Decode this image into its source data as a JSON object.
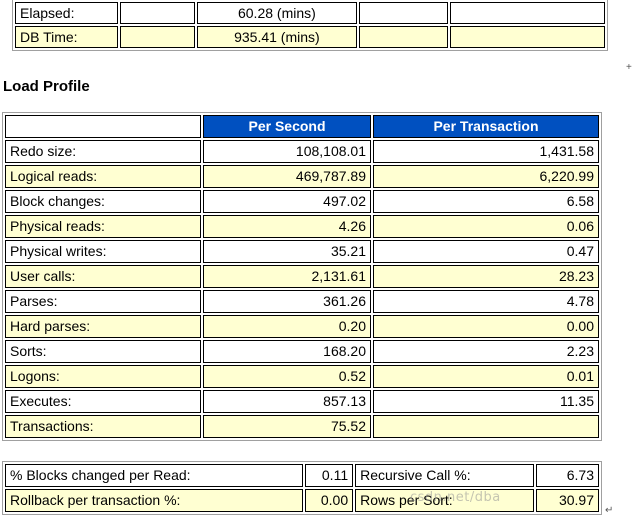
{
  "top_rows": [
    {
      "label": "Elapsed:",
      "value": "60.28 (mins)"
    },
    {
      "label": "DB Time:",
      "value": "935.41 (mins)"
    }
  ],
  "load_profile": {
    "title": "Load Profile",
    "headers": [
      "Per Second",
      "Per Transaction"
    ],
    "rows": [
      {
        "label": "Redo size:",
        "per_second": "108,108.01",
        "per_transaction": "1,431.58"
      },
      {
        "label": "Logical reads:",
        "per_second": "469,787.89",
        "per_transaction": "6,220.99"
      },
      {
        "label": "Block changes:",
        "per_second": "497.02",
        "per_transaction": "6.58"
      },
      {
        "label": "Physical reads:",
        "per_second": "4.26",
        "per_transaction": "0.06"
      },
      {
        "label": "Physical writes:",
        "per_second": "35.21",
        "per_transaction": "0.47"
      },
      {
        "label": "User calls:",
        "per_second": "2,131.61",
        "per_transaction": "28.23"
      },
      {
        "label": "Parses:",
        "per_second": "361.26",
        "per_transaction": "4.78"
      },
      {
        "label": "Hard parses:",
        "per_second": "0.20",
        "per_transaction": "0.00"
      },
      {
        "label": "Sorts:",
        "per_second": "168.20",
        "per_transaction": "2.23"
      },
      {
        "label": "Logons:",
        "per_second": "0.52",
        "per_transaction": "0.01"
      },
      {
        "label": "Executes:",
        "per_second": "857.13",
        "per_transaction": "11.35"
      },
      {
        "label": "Transactions:",
        "per_second": "75.52",
        "per_transaction": ""
      }
    ]
  },
  "ratios": [
    {
      "label1": "% Blocks changed per Read:",
      "value1": "0.11",
      "label2": "Recursive Call %:",
      "value2": "6.73"
    },
    {
      "label1": "Rollback per transaction %:",
      "value1": "0.00",
      "label2": "Rows per Sort:",
      "value2": "30.97"
    }
  ],
  "watermark": "csdn.net/dba",
  "marks": [
    "+",
    "↵"
  ]
}
